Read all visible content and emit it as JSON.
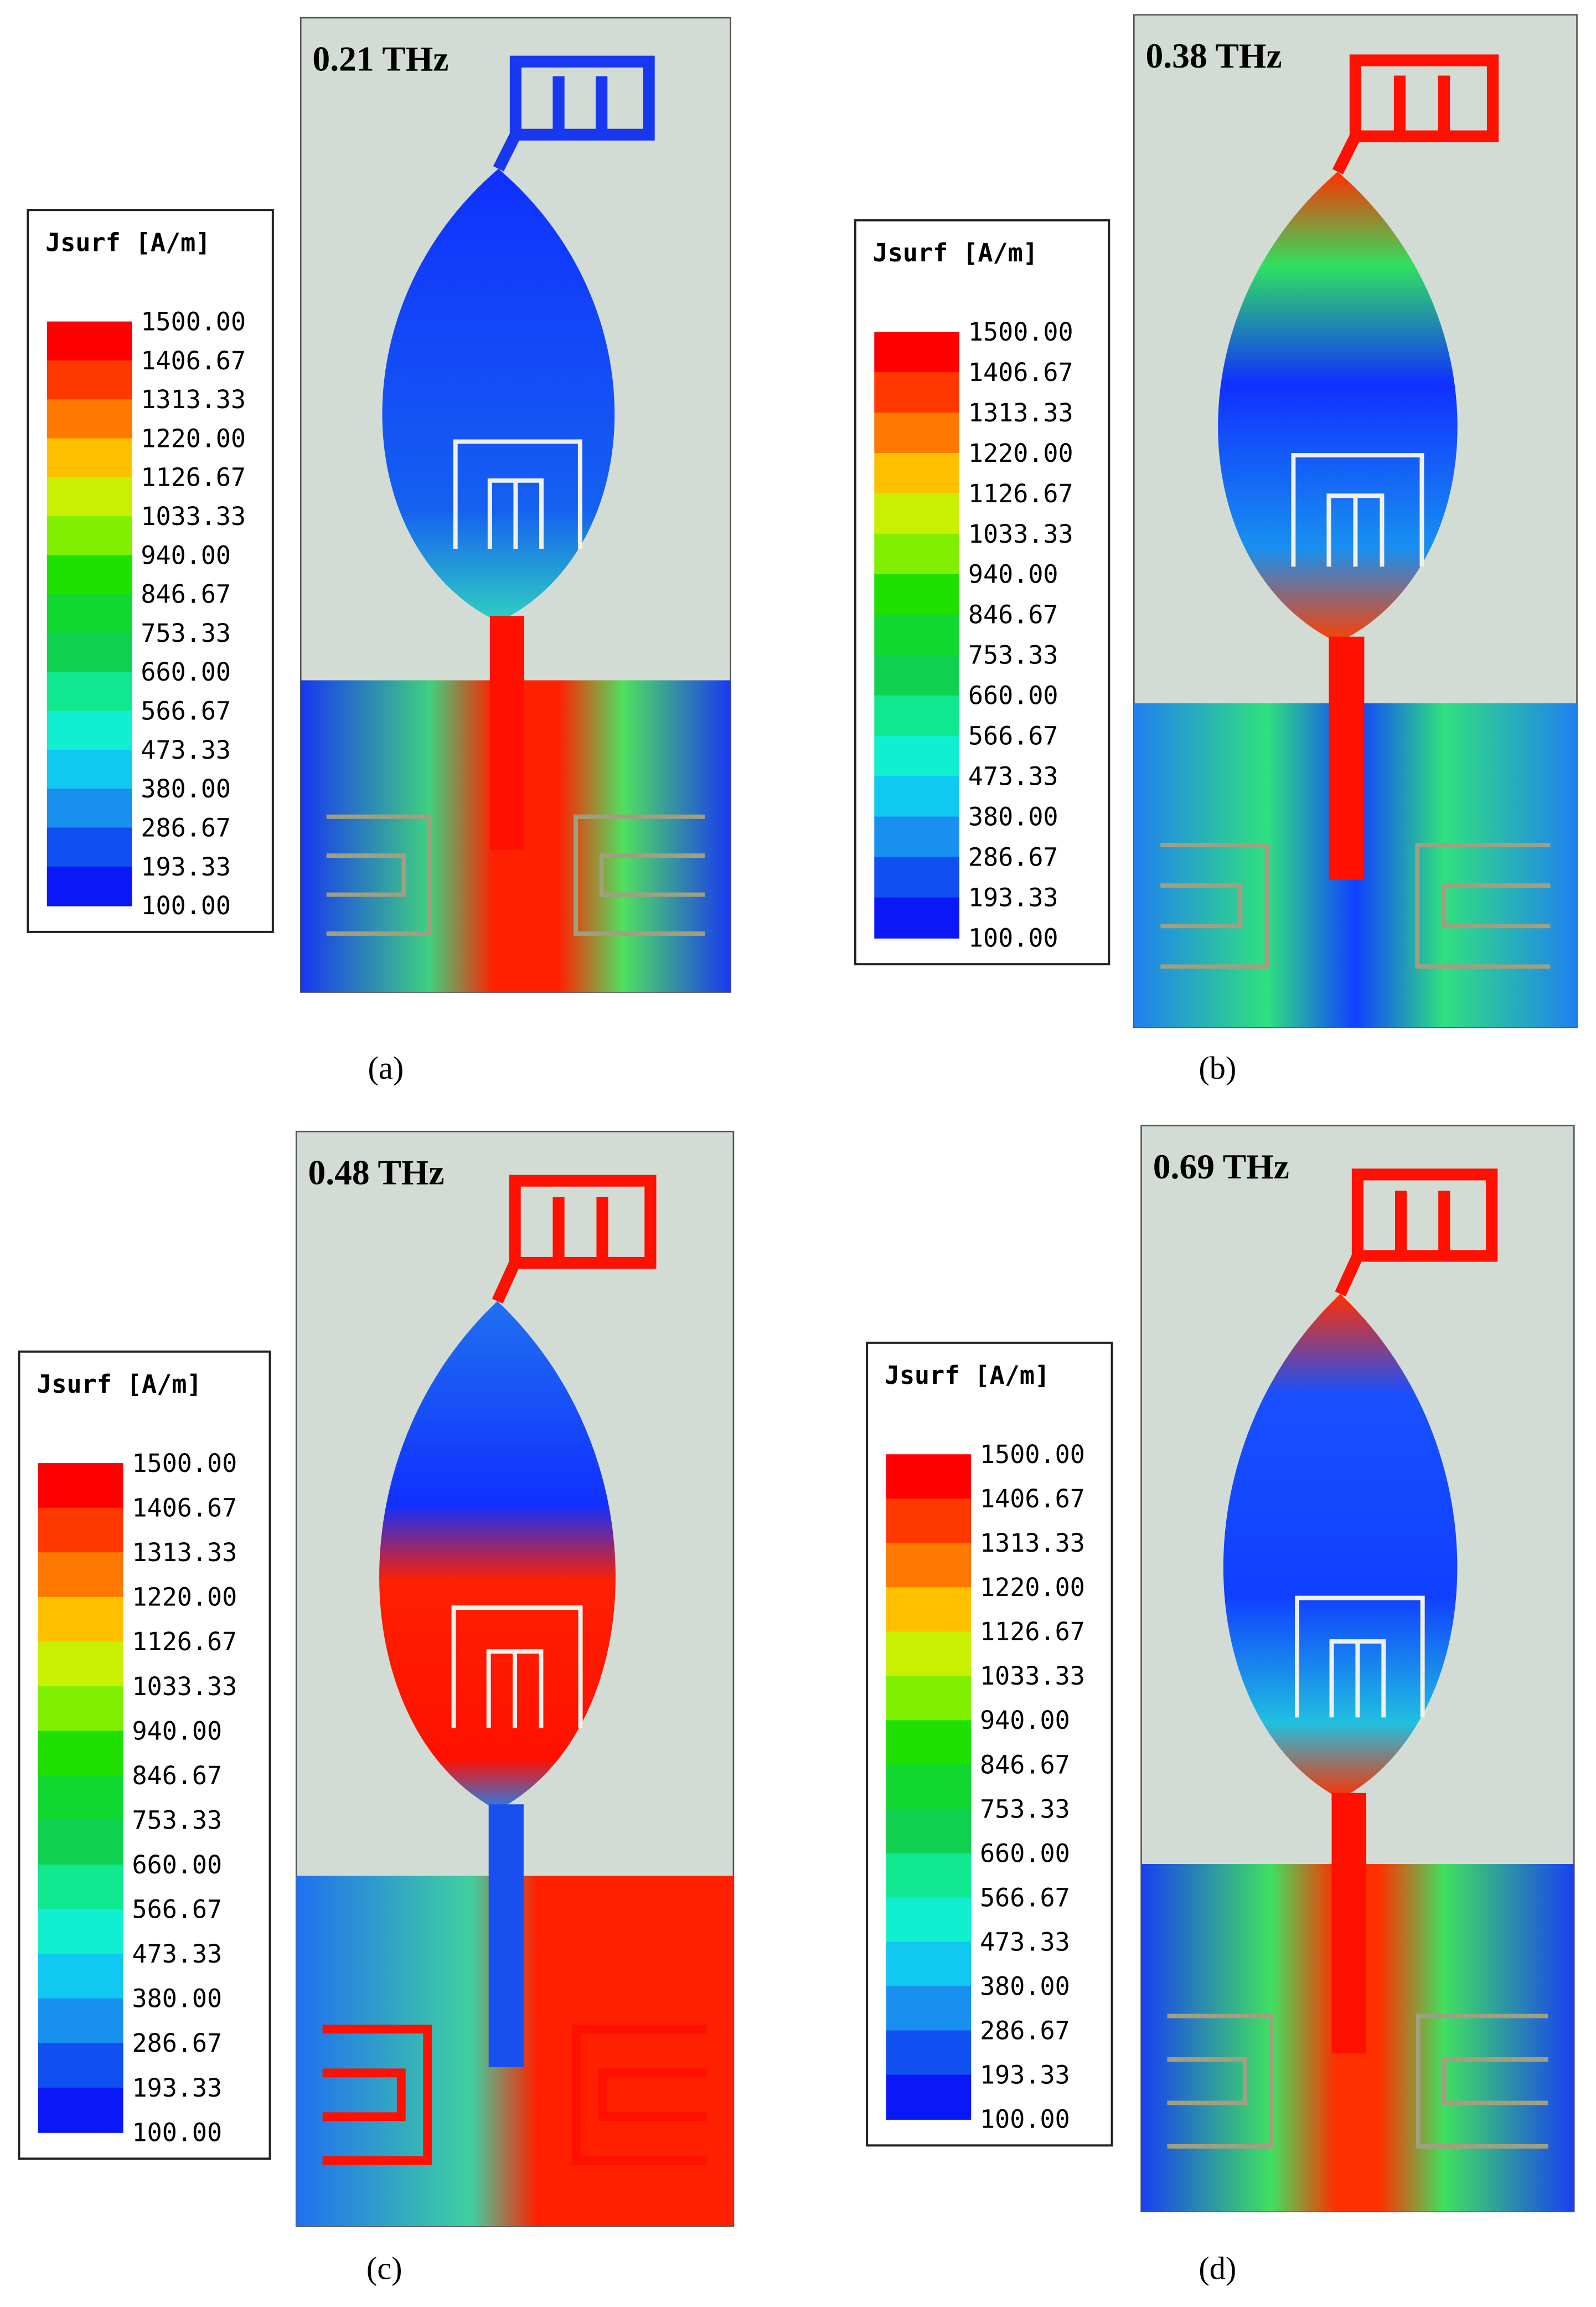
{
  "panels": [
    {
      "frequency": "0.21 THz",
      "legend": {
        "title": "Jsurf [A/m]",
        "levels": [
          "1500.00",
          "1406.67",
          "1313.33",
          "1220.00",
          "1126.67",
          "1033.33",
          "940.00",
          "846.67",
          "753.33",
          "660.00",
          "566.67",
          "473.33",
          "380.00",
          "286.67",
          "193.33",
          "100.00"
        ]
      },
      "caption": "(a)"
    },
    {
      "frequency": "0.38 THz",
      "legend": {
        "title": "Jsurf [A/m]",
        "levels": [
          "1500.00",
          "1406.67",
          "1313.33",
          "1220.00",
          "1126.67",
          "1033.33",
          "940.00",
          "846.67",
          "753.33",
          "660.00",
          "566.67",
          "473.33",
          "380.00",
          "286.67",
          "193.33",
          "100.00"
        ]
      },
      "caption": "(b)"
    },
    {
      "frequency": "0.48 THz",
      "legend": {
        "title": "Jsurf [A/m]",
        "levels": [
          "1500.00",
          "1406.67",
          "1313.33",
          "1220.00",
          "1126.67",
          "1033.33",
          "940.00",
          "846.67",
          "753.33",
          "660.00",
          "566.67",
          "473.33",
          "380.00",
          "286.67",
          "193.33",
          "100.00"
        ]
      },
      "caption": "(c)"
    },
    {
      "frequency": "0.69 THz",
      "legend": {
        "title": "Jsurf [A/m]",
        "levels": [
          "1500.00",
          "1406.67",
          "1313.33",
          "1220.00",
          "1126.67",
          "1033.33",
          "940.00",
          "846.67",
          "753.33",
          "660.00",
          "566.67",
          "473.33",
          "380.00",
          "286.67",
          "193.33",
          "100.00"
        ]
      },
      "caption": "(d)"
    }
  ]
}
